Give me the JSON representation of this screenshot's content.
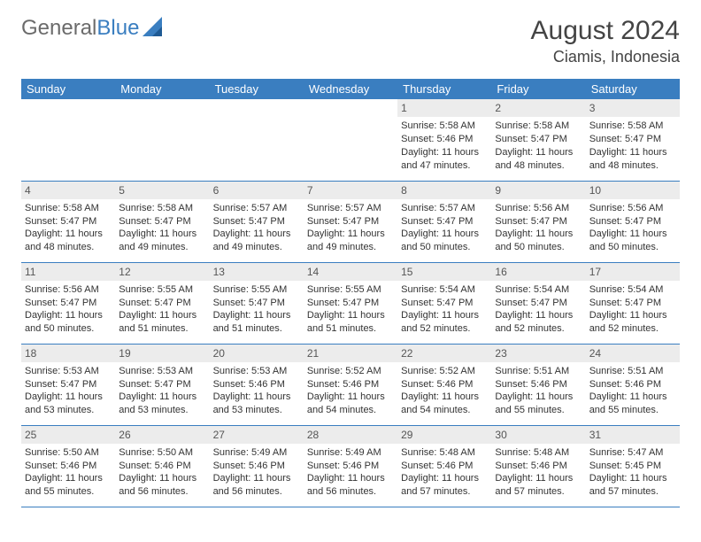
{
  "brand": {
    "text1": "General",
    "text2": "Blue",
    "text1_color": "#6b6b6b",
    "text2_color": "#3a7ec0"
  },
  "header": {
    "title": "August 2024",
    "location": "Ciamis, Indonesia"
  },
  "colors": {
    "header_bg": "#3a7ec0",
    "header_text": "#ffffff",
    "daynum_bg": "#ececec",
    "body_text": "#333333"
  },
  "weekdays": [
    "Sunday",
    "Monday",
    "Tuesday",
    "Wednesday",
    "Thursday",
    "Friday",
    "Saturday"
  ],
  "weeks": [
    [
      null,
      null,
      null,
      null,
      {
        "day": 1,
        "sunrise": "5:58 AM",
        "sunset": "5:46 PM",
        "daylight": "11 hours and 47 minutes."
      },
      {
        "day": 2,
        "sunrise": "5:58 AM",
        "sunset": "5:47 PM",
        "daylight": "11 hours and 48 minutes."
      },
      {
        "day": 3,
        "sunrise": "5:58 AM",
        "sunset": "5:47 PM",
        "daylight": "11 hours and 48 minutes."
      }
    ],
    [
      {
        "day": 4,
        "sunrise": "5:58 AM",
        "sunset": "5:47 PM",
        "daylight": "11 hours and 48 minutes."
      },
      {
        "day": 5,
        "sunrise": "5:58 AM",
        "sunset": "5:47 PM",
        "daylight": "11 hours and 49 minutes."
      },
      {
        "day": 6,
        "sunrise": "5:57 AM",
        "sunset": "5:47 PM",
        "daylight": "11 hours and 49 minutes."
      },
      {
        "day": 7,
        "sunrise": "5:57 AM",
        "sunset": "5:47 PM",
        "daylight": "11 hours and 49 minutes."
      },
      {
        "day": 8,
        "sunrise": "5:57 AM",
        "sunset": "5:47 PM",
        "daylight": "11 hours and 50 minutes."
      },
      {
        "day": 9,
        "sunrise": "5:56 AM",
        "sunset": "5:47 PM",
        "daylight": "11 hours and 50 minutes."
      },
      {
        "day": 10,
        "sunrise": "5:56 AM",
        "sunset": "5:47 PM",
        "daylight": "11 hours and 50 minutes."
      }
    ],
    [
      {
        "day": 11,
        "sunrise": "5:56 AM",
        "sunset": "5:47 PM",
        "daylight": "11 hours and 50 minutes."
      },
      {
        "day": 12,
        "sunrise": "5:55 AM",
        "sunset": "5:47 PM",
        "daylight": "11 hours and 51 minutes."
      },
      {
        "day": 13,
        "sunrise": "5:55 AM",
        "sunset": "5:47 PM",
        "daylight": "11 hours and 51 minutes."
      },
      {
        "day": 14,
        "sunrise": "5:55 AM",
        "sunset": "5:47 PM",
        "daylight": "11 hours and 51 minutes."
      },
      {
        "day": 15,
        "sunrise": "5:54 AM",
        "sunset": "5:47 PM",
        "daylight": "11 hours and 52 minutes."
      },
      {
        "day": 16,
        "sunrise": "5:54 AM",
        "sunset": "5:47 PM",
        "daylight": "11 hours and 52 minutes."
      },
      {
        "day": 17,
        "sunrise": "5:54 AM",
        "sunset": "5:47 PM",
        "daylight": "11 hours and 52 minutes."
      }
    ],
    [
      {
        "day": 18,
        "sunrise": "5:53 AM",
        "sunset": "5:47 PM",
        "daylight": "11 hours and 53 minutes."
      },
      {
        "day": 19,
        "sunrise": "5:53 AM",
        "sunset": "5:47 PM",
        "daylight": "11 hours and 53 minutes."
      },
      {
        "day": 20,
        "sunrise": "5:53 AM",
        "sunset": "5:46 PM",
        "daylight": "11 hours and 53 minutes."
      },
      {
        "day": 21,
        "sunrise": "5:52 AM",
        "sunset": "5:46 PM",
        "daylight": "11 hours and 54 minutes."
      },
      {
        "day": 22,
        "sunrise": "5:52 AM",
        "sunset": "5:46 PM",
        "daylight": "11 hours and 54 minutes."
      },
      {
        "day": 23,
        "sunrise": "5:51 AM",
        "sunset": "5:46 PM",
        "daylight": "11 hours and 55 minutes."
      },
      {
        "day": 24,
        "sunrise": "5:51 AM",
        "sunset": "5:46 PM",
        "daylight": "11 hours and 55 minutes."
      }
    ],
    [
      {
        "day": 25,
        "sunrise": "5:50 AM",
        "sunset": "5:46 PM",
        "daylight": "11 hours and 55 minutes."
      },
      {
        "day": 26,
        "sunrise": "5:50 AM",
        "sunset": "5:46 PM",
        "daylight": "11 hours and 56 minutes."
      },
      {
        "day": 27,
        "sunrise": "5:49 AM",
        "sunset": "5:46 PM",
        "daylight": "11 hours and 56 minutes."
      },
      {
        "day": 28,
        "sunrise": "5:49 AM",
        "sunset": "5:46 PM",
        "daylight": "11 hours and 56 minutes."
      },
      {
        "day": 29,
        "sunrise": "5:48 AM",
        "sunset": "5:46 PM",
        "daylight": "11 hours and 57 minutes."
      },
      {
        "day": 30,
        "sunrise": "5:48 AM",
        "sunset": "5:46 PM",
        "daylight": "11 hours and 57 minutes."
      },
      {
        "day": 31,
        "sunrise": "5:47 AM",
        "sunset": "5:45 PM",
        "daylight": "11 hours and 57 minutes."
      }
    ]
  ],
  "labels": {
    "sunrise": "Sunrise:",
    "sunset": "Sunset:",
    "daylight": "Daylight:"
  }
}
